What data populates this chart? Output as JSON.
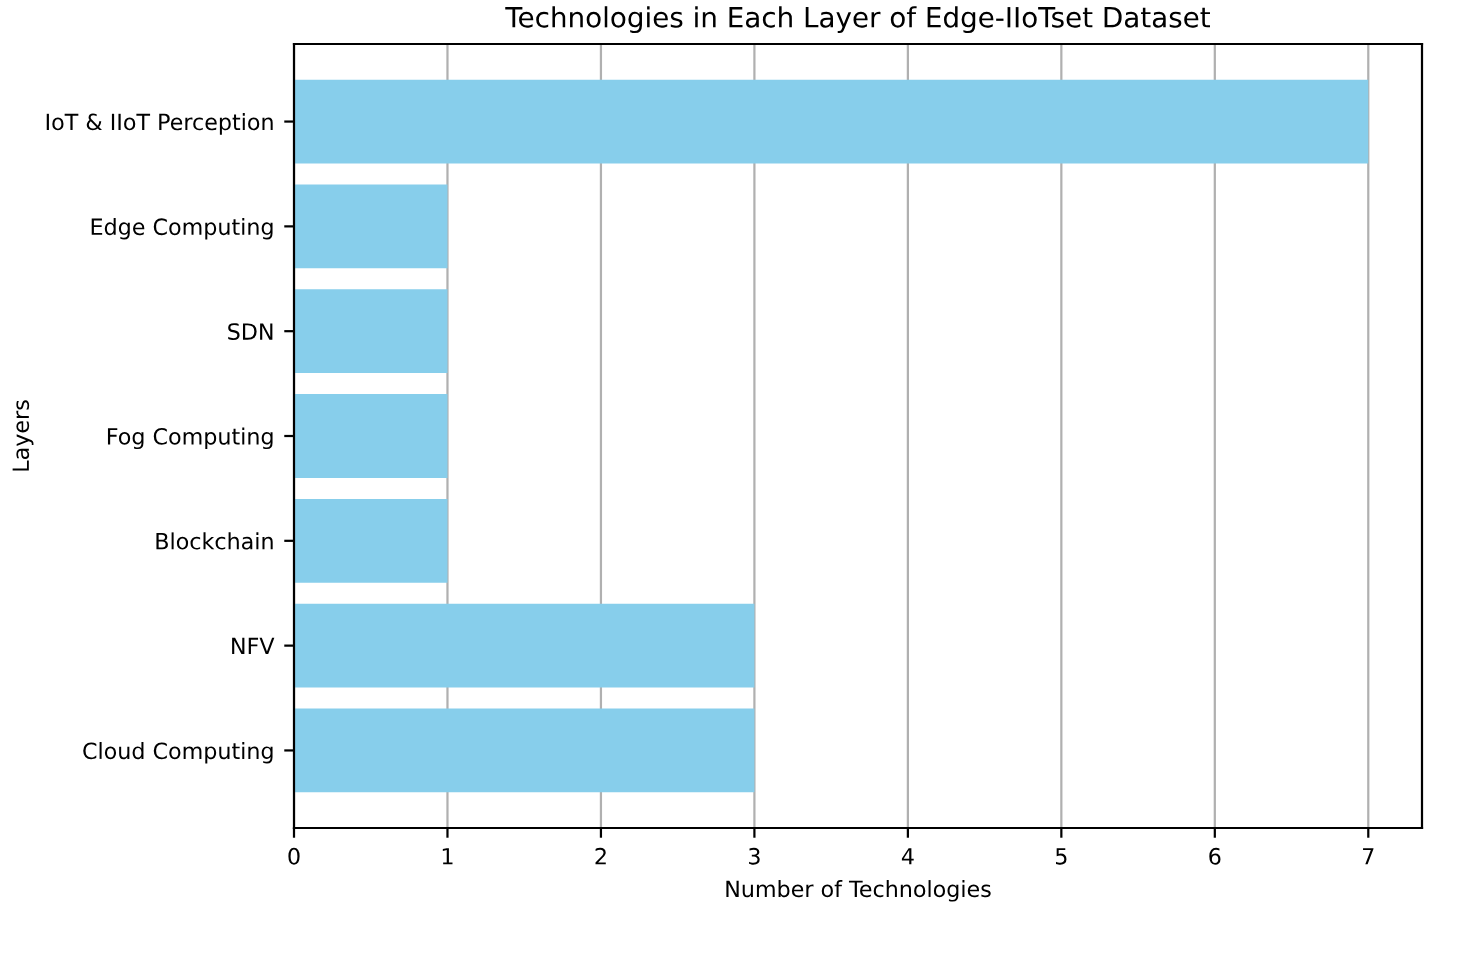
{
  "chart_data": {
    "type": "bar",
    "orientation": "horizontal",
    "title": "Technologies in Each Layer of Edge-IIoTset Dataset",
    "xlabel": "Number of Technologies",
    "ylabel": "Layers",
    "categories": [
      "IoT & IIoT Perception",
      "Edge Computing",
      "SDN",
      "Fog Computing",
      "Blockchain",
      "NFV",
      "Cloud Computing"
    ],
    "values": [
      7,
      1,
      1,
      1,
      1,
      3,
      3
    ],
    "color": "#87ceeb",
    "xlim": [
      0,
      7.35
    ],
    "xticks": [
      0,
      1,
      2,
      3,
      4,
      5,
      6,
      7
    ],
    "grid": "x"
  }
}
